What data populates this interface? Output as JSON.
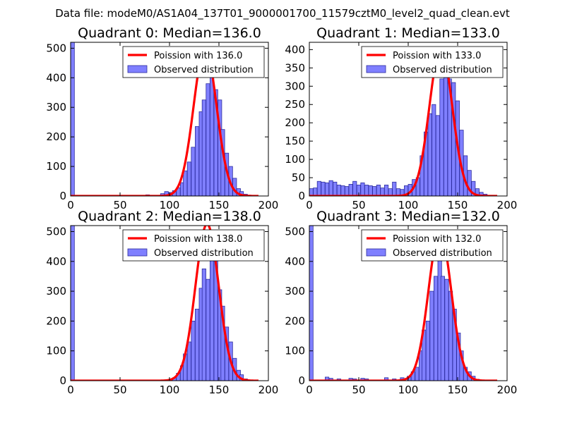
{
  "figure_title": "Data file: modeM0/AS1A04_137T01_9000001700_11579cztM0_level2_quad_clean.evt",
  "colors": {
    "bar_fill": "#7f7fff",
    "bar_edge": "#2d2d9e",
    "fit_line": "#ff0000"
  },
  "chart_data": [
    {
      "type": "bar",
      "title": "Quadrant 0: Median=136.0",
      "xlim": [
        0,
        200
      ],
      "ylim": [
        0,
        520
      ],
      "xticks": [
        0,
        50,
        100,
        150,
        200
      ],
      "yticks": [
        0,
        100,
        200,
        300,
        400,
        500
      ],
      "legend": {
        "line": "Poission with 136.0",
        "bars": "Observed distribution",
        "position": "top-right"
      },
      "bin_width": 3.8,
      "bins": [
        {
          "x": 0,
          "h": 520
        },
        {
          "x": 76,
          "h": 4
        },
        {
          "x": 80,
          "h": 2
        },
        {
          "x": 91,
          "h": 8
        },
        {
          "x": 95,
          "h": 15
        },
        {
          "x": 99,
          "h": 12
        },
        {
          "x": 103,
          "h": 18
        },
        {
          "x": 107,
          "h": 28
        },
        {
          "x": 111,
          "h": 45
        },
        {
          "x": 114,
          "h": 85
        },
        {
          "x": 118,
          "h": 115
        },
        {
          "x": 122,
          "h": 165
        },
        {
          "x": 126,
          "h": 235
        },
        {
          "x": 130,
          "h": 285
        },
        {
          "x": 133,
          "h": 325
        },
        {
          "x": 137,
          "h": 380
        },
        {
          "x": 141,
          "h": 425
        },
        {
          "x": 145,
          "h": 360
        },
        {
          "x": 149,
          "h": 325
        },
        {
          "x": 152,
          "h": 225
        },
        {
          "x": 156,
          "h": 145
        },
        {
          "x": 160,
          "h": 100
        },
        {
          "x": 164,
          "h": 60
        },
        {
          "x": 168,
          "h": 25
        },
        {
          "x": 171,
          "h": 15
        },
        {
          "x": 175,
          "h": 6
        },
        {
          "x": 179,
          "h": 3
        }
      ],
      "fit": {
        "type": "poisson",
        "mean": 136.0,
        "peak": 500,
        "x_range": [
          0,
          190
        ]
      }
    },
    {
      "type": "bar",
      "title": "Quadrant 1: Median=133.0",
      "xlim": [
        0,
        200
      ],
      "ylim": [
        0,
        420
      ],
      "xticks": [
        0,
        50,
        100,
        150,
        200
      ],
      "yticks": [
        0,
        50,
        100,
        150,
        200,
        250,
        300,
        350,
        400
      ],
      "legend": {
        "line": "Poission with 133.0",
        "bars": "Observed distribution",
        "position": "top-right"
      },
      "bin_width": 3.8,
      "bins": [
        {
          "x": 0,
          "h": 20
        },
        {
          "x": 4,
          "h": 22
        },
        {
          "x": 8,
          "h": 40
        },
        {
          "x": 12,
          "h": 38
        },
        {
          "x": 16,
          "h": 36
        },
        {
          "x": 20,
          "h": 42
        },
        {
          "x": 24,
          "h": 38
        },
        {
          "x": 28,
          "h": 30
        },
        {
          "x": 32,
          "h": 28
        },
        {
          "x": 36,
          "h": 26
        },
        {
          "x": 40,
          "h": 32
        },
        {
          "x": 44,
          "h": 40
        },
        {
          "x": 48,
          "h": 30
        },
        {
          "x": 52,
          "h": 36
        },
        {
          "x": 56,
          "h": 30
        },
        {
          "x": 60,
          "h": 28
        },
        {
          "x": 64,
          "h": 26
        },
        {
          "x": 68,
          "h": 30
        },
        {
          "x": 72,
          "h": 22
        },
        {
          "x": 76,
          "h": 30
        },
        {
          "x": 80,
          "h": 20
        },
        {
          "x": 84,
          "h": 38
        },
        {
          "x": 88,
          "h": 20
        },
        {
          "x": 92,
          "h": 18
        },
        {
          "x": 96,
          "h": 28
        },
        {
          "x": 100,
          "h": 32
        },
        {
          "x": 104,
          "h": 45
        },
        {
          "x": 108,
          "h": 50
        },
        {
          "x": 112,
          "h": 110
        },
        {
          "x": 116,
          "h": 175
        },
        {
          "x": 120,
          "h": 225
        },
        {
          "x": 124,
          "h": 250
        },
        {
          "x": 128,
          "h": 220
        },
        {
          "x": 132,
          "h": 320
        },
        {
          "x": 136,
          "h": 400
        },
        {
          "x": 140,
          "h": 320
        },
        {
          "x": 144,
          "h": 310
        },
        {
          "x": 148,
          "h": 260
        },
        {
          "x": 152,
          "h": 180
        },
        {
          "x": 156,
          "h": 110
        },
        {
          "x": 160,
          "h": 70
        },
        {
          "x": 164,
          "h": 40
        },
        {
          "x": 168,
          "h": 20
        },
        {
          "x": 172,
          "h": 10
        },
        {
          "x": 176,
          "h": 5
        }
      ],
      "fit": {
        "type": "poisson",
        "mean": 133.0,
        "peak": 405,
        "x_range": [
          0,
          190
        ]
      }
    },
    {
      "type": "bar",
      "title": "Quadrant 2: Median=138.0",
      "xlim": [
        0,
        200
      ],
      "ylim": [
        0,
        520
      ],
      "xticks": [
        0,
        50,
        100,
        150,
        200
      ],
      "yticks": [
        0,
        100,
        200,
        300,
        400,
        500
      ],
      "legend": {
        "line": "Poission with 138.0",
        "bars": "Observed distribution",
        "position": "top-right"
      },
      "bin_width": 3.8,
      "bins": [
        {
          "x": 0,
          "h": 520
        },
        {
          "x": 99,
          "h": 5
        },
        {
          "x": 103,
          "h": 10
        },
        {
          "x": 107,
          "h": 25
        },
        {
          "x": 111,
          "h": 50
        },
        {
          "x": 114,
          "h": 90
        },
        {
          "x": 118,
          "h": 130
        },
        {
          "x": 122,
          "h": 200
        },
        {
          "x": 126,
          "h": 240
        },
        {
          "x": 130,
          "h": 310
        },
        {
          "x": 133,
          "h": 375
        },
        {
          "x": 137,
          "h": 340
        },
        {
          "x": 141,
          "h": 505
        },
        {
          "x": 145,
          "h": 410
        },
        {
          "x": 149,
          "h": 305
        },
        {
          "x": 152,
          "h": 250
        },
        {
          "x": 156,
          "h": 180
        },
        {
          "x": 160,
          "h": 130
        },
        {
          "x": 164,
          "h": 75
        },
        {
          "x": 168,
          "h": 35
        },
        {
          "x": 171,
          "h": 20
        },
        {
          "x": 175,
          "h": 6
        }
      ],
      "fit": {
        "type": "poisson",
        "mean": 138.0,
        "peak": 525,
        "x_range": [
          0,
          190
        ]
      }
    },
    {
      "type": "bar",
      "title": "Quadrant 3: Median=132.0",
      "xlim": [
        0,
        200
      ],
      "ylim": [
        0,
        520
      ],
      "xticks": [
        0,
        50,
        100,
        150,
        200
      ],
      "yticks": [
        0,
        100,
        200,
        300,
        400,
        500
      ],
      "legend": {
        "line": "Poission with 132.0",
        "bars": "Observed distribution",
        "position": "top-right"
      },
      "bin_width": 3.8,
      "bins": [
        {
          "x": 0,
          "h": 520
        },
        {
          "x": 16,
          "h": 12
        },
        {
          "x": 20,
          "h": 8
        },
        {
          "x": 28,
          "h": 6
        },
        {
          "x": 40,
          "h": 8
        },
        {
          "x": 44,
          "h": 6
        },
        {
          "x": 52,
          "h": 8
        },
        {
          "x": 56,
          "h": 6
        },
        {
          "x": 76,
          "h": 10
        },
        {
          "x": 84,
          "h": 6
        },
        {
          "x": 92,
          "h": 10
        },
        {
          "x": 99,
          "h": 15
        },
        {
          "x": 103,
          "h": 30
        },
        {
          "x": 107,
          "h": 45
        },
        {
          "x": 111,
          "h": 100
        },
        {
          "x": 114,
          "h": 170
        },
        {
          "x": 118,
          "h": 200
        },
        {
          "x": 122,
          "h": 300
        },
        {
          "x": 126,
          "h": 350
        },
        {
          "x": 130,
          "h": 450
        },
        {
          "x": 133,
          "h": 350
        },
        {
          "x": 137,
          "h": 340
        },
        {
          "x": 141,
          "h": 300
        },
        {
          "x": 145,
          "h": 240
        },
        {
          "x": 149,
          "h": 160
        },
        {
          "x": 152,
          "h": 100
        },
        {
          "x": 156,
          "h": 45
        },
        {
          "x": 160,
          "h": 30
        },
        {
          "x": 164,
          "h": 15
        },
        {
          "x": 168,
          "h": 5
        }
      ],
      "fit": {
        "type": "poisson",
        "mean": 132.0,
        "peak": 500,
        "x_range": [
          0,
          190
        ]
      }
    }
  ]
}
